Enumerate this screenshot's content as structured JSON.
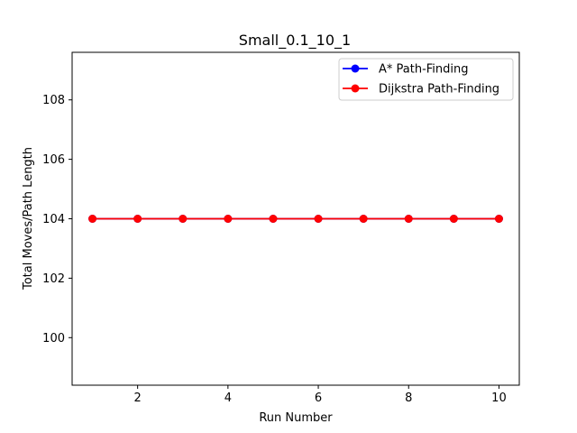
{
  "chart_data": {
    "type": "line",
    "title": "Small_0.1_10_1",
    "xlabel": "Run Number",
    "ylabel": "Total Moves/Path Length",
    "x": [
      1,
      2,
      3,
      4,
      5,
      6,
      7,
      8,
      9,
      10
    ],
    "xlim": [
      0.55,
      10.45
    ],
    "ylim": [
      98.4,
      109.6
    ],
    "xticks": [
      2,
      4,
      6,
      8,
      10
    ],
    "yticks": [
      100,
      102,
      104,
      106,
      108
    ],
    "grid": false,
    "legend_position": "top-right",
    "series": [
      {
        "name": "A* Path-Finding",
        "color": "#0000ff",
        "values": [
          104,
          104,
          104,
          104,
          104,
          104,
          104,
          104,
          104,
          104
        ]
      },
      {
        "name": "Dijkstra Path-Finding",
        "color": "#ff0000",
        "values": [
          104,
          104,
          104,
          104,
          104,
          104,
          104,
          104,
          104,
          104
        ]
      }
    ]
  }
}
